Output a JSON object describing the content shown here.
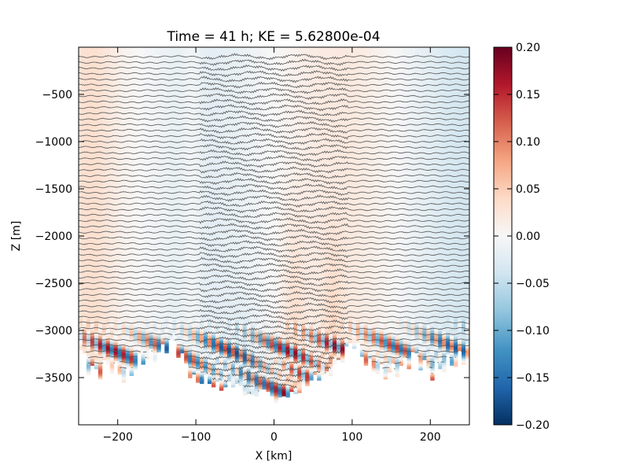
{
  "chart_data": {
    "type": "heatmap",
    "title": "Time = 41 h; KE = 5.62800e-04",
    "xlabel": "X [km]",
    "ylabel": "Z [m]",
    "xlim": [
      -250,
      250
    ],
    "ylim": [
      -4000,
      0
    ],
    "x_ticks": [
      -200,
      -100,
      0,
      100,
      200
    ],
    "y_ticks": [
      -500,
      -1000,
      -1500,
      -2000,
      -2500,
      -3000,
      -3500
    ],
    "colorbar": {
      "min": -0.2,
      "max": 0.2,
      "ticks": [
        "0.20",
        "0.15",
        "0.10",
        "0.05",
        "0.00",
        "−0.05",
        "−0.10",
        "−0.15",
        "−0.20"
      ],
      "colormap": "RdBu_r",
      "colors": [
        "#053061",
        "#2166ac",
        "#4393c3",
        "#92c5de",
        "#d1e5f0",
        "#f7f7f7",
        "#fddbc7",
        "#f4a582",
        "#d6604d",
        "#b2182b",
        "#67001f"
      ]
    },
    "contour_color": "#555555",
    "bottom_depth_profile": {
      "x_km": [
        -250,
        -230,
        -210,
        -190,
        -170,
        -150,
        -130,
        -110,
        -100,
        -90,
        -70,
        -50,
        -30,
        -10,
        0,
        10,
        30,
        50,
        70,
        90,
        100,
        120,
        140,
        160,
        180,
        200,
        220,
        240,
        250
      ],
      "z_m": [
        -3200,
        -3450,
        -3350,
        -3500,
        -3300,
        -3250,
        -3100,
        -3400,
        -3550,
        -3500,
        -3600,
        -3550,
        -3700,
        -3600,
        -3750,
        -3700,
        -3650,
        -3500,
        -3450,
        -3250,
        -3100,
        -3350,
        -3450,
        -3400,
        -3250,
        -3450,
        -3350,
        -3300,
        -3250
      ]
    }
  }
}
